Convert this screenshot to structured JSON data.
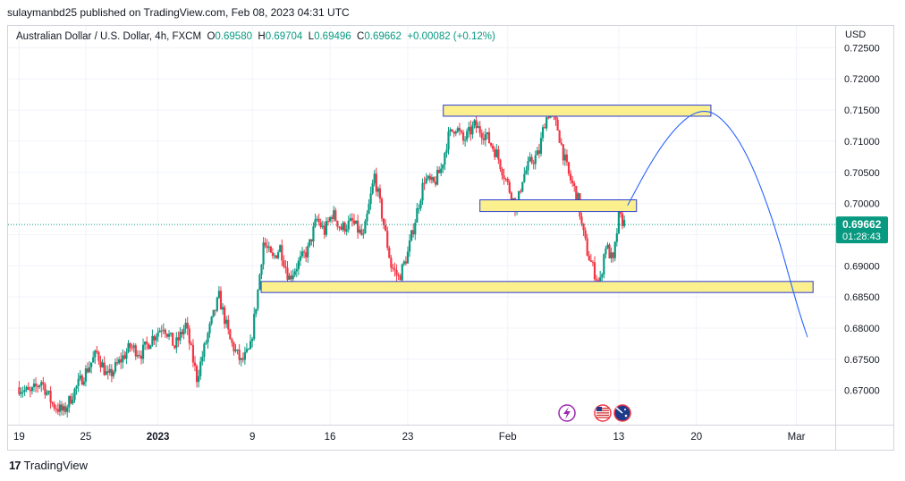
{
  "header": {
    "published_line": "sulaymanbd25 published on TradingView.com, Feb 08, 2023 04:31 UTC"
  },
  "legend": {
    "symbol": "Australian Dollar / U.S. Dollar, 4h, FXCM",
    "open_label": "O",
    "open": "0.69580",
    "high_label": "H",
    "high": "0.69704",
    "low_label": "L",
    "low": "0.69496",
    "close_label": "C",
    "close": "0.69662",
    "change": "+0.00082 (+0.12%)"
  },
  "axis": {
    "currency": "USD"
  },
  "price_tag": {
    "price": "0.69662",
    "countdown": "01:28:43"
  },
  "footer": {
    "brand": "TradingView"
  },
  "colors": {
    "up": "#089981",
    "down": "#f23645",
    "zone_fill": "#fbef8e",
    "zone_border": "#2a3bd2",
    "projection": "#2962ff",
    "grid": "#f0f3fa",
    "tag": "#089981"
  },
  "icons": [
    "lightning-event-icon",
    "us-flag-icon",
    "au-flag-icon"
  ],
  "chart_data": {
    "type": "candlestick",
    "title": "",
    "xlabel": "",
    "ylabel": "",
    "ylim": [
      0.6645,
      0.7285
    ],
    "y_ticks": [
      "0.72500",
      "0.72000",
      "0.71500",
      "0.71000",
      "0.70500",
      "0.70000",
      "0.69500",
      "0.69000",
      "0.68500",
      "0.68000",
      "0.67500",
      "0.67000"
    ],
    "y_tick_values": [
      0.725,
      0.72,
      0.715,
      0.71,
      0.705,
      0.7,
      0.695,
      0.69,
      0.685,
      0.68,
      0.675,
      0.67
    ],
    "x_ticks": [
      "19",
      "25",
      "2023",
      "9",
      "16",
      "23",
      "Feb",
      "13",
      "20",
      "Mar"
    ],
    "x_tick_days": [
      0,
      6,
      12.5,
      21,
      28,
      35,
      44,
      54,
      61,
      70
    ],
    "x_range_days": [
      -1.0,
      73.5
    ],
    "series_path": [
      [
        0,
        0.6705
      ],
      [
        1,
        0.6695
      ],
      [
        2,
        0.6715
      ],
      [
        3,
        0.6678
      ],
      [
        4,
        0.6665
      ],
      [
        5,
        0.67
      ],
      [
        6,
        0.673
      ],
      [
        7,
        0.676
      ],
      [
        8,
        0.672
      ],
      [
        9,
        0.6745
      ],
      [
        10,
        0.677
      ],
      [
        11,
        0.676
      ],
      [
        12,
        0.6785
      ],
      [
        13,
        0.6805
      ],
      [
        14,
        0.677
      ],
      [
        15,
        0.6805
      ],
      [
        16,
        0.672
      ],
      [
        17,
        0.679
      ],
      [
        18,
        0.685
      ],
      [
        19,
        0.678
      ],
      [
        20,
        0.6745
      ],
      [
        20.8,
        0.6765
      ],
      [
        21.5,
        0.686
      ],
      [
        22,
        0.6938
      ],
      [
        22.8,
        0.691
      ],
      [
        23.5,
        0.693
      ],
      [
        24.3,
        0.688
      ],
      [
        25,
        0.69
      ],
      [
        26,
        0.6925
      ],
      [
        26.8,
        0.6975
      ],
      [
        27.5,
        0.6955
      ],
      [
        28.2,
        0.6985
      ],
      [
        29,
        0.696
      ],
      [
        30,
        0.697
      ],
      [
        31,
        0.6945
      ],
      [
        32,
        0.7045
      ],
      [
        32.8,
        0.697
      ],
      [
        33.5,
        0.69
      ],
      [
        34.2,
        0.688
      ],
      [
        35,
        0.692
      ],
      [
        35.8,
        0.6985
      ],
      [
        36.5,
        0.704
      ],
      [
        37.3,
        0.703
      ],
      [
        38,
        0.7055
      ],
      [
        38.6,
        0.7105
      ],
      [
        39.3,
        0.7125
      ],
      [
        40,
        0.71
      ],
      [
        41,
        0.7125
      ],
      [
        42,
        0.711
      ],
      [
        43,
        0.708
      ],
      [
        44,
        0.703
      ],
      [
        44.8,
        0.699
      ],
      [
        45.3,
        0.704
      ],
      [
        46,
        0.7065
      ],
      [
        46.8,
        0.708
      ],
      [
        47.3,
        0.713
      ],
      [
        47.8,
        0.715
      ],
      [
        48.5,
        0.712
      ],
      [
        49,
        0.708
      ],
      [
        49.5,
        0.7045
      ],
      [
        50.3,
        0.701
      ],
      [
        50.7,
        0.696
      ],
      [
        51.2,
        0.692
      ],
      [
        51.8,
        0.689
      ],
      [
        52.3,
        0.687
      ],
      [
        52.8,
        0.6935
      ],
      [
        53.5,
        0.6905
      ],
      [
        54,
        0.698
      ],
      [
        54.6,
        0.6966
      ]
    ],
    "zones": [
      {
        "name": "resistance-zone-top",
        "from_day": 38.2,
        "to_day": 62.3,
        "low": 0.7143,
        "high": 0.7155
      },
      {
        "name": "mid-zone",
        "from_day": 41.5,
        "to_day": 55.6,
        "low": 0.699,
        "high": 0.7003
      },
      {
        "name": "support-zone-bottom",
        "from_day": 21.8,
        "to_day": 71.5,
        "low": 0.686,
        "high": 0.6872
      }
    ],
    "projection": [
      [
        54.8,
        0.6997
      ],
      [
        57,
        0.707
      ],
      [
        59,
        0.712
      ],
      [
        61,
        0.715
      ],
      [
        63,
        0.7145
      ],
      [
        65.5,
        0.7085
      ],
      [
        68,
        0.697
      ],
      [
        70,
        0.684
      ],
      [
        71,
        0.6785
      ]
    ],
    "last_price": 0.69662
  }
}
